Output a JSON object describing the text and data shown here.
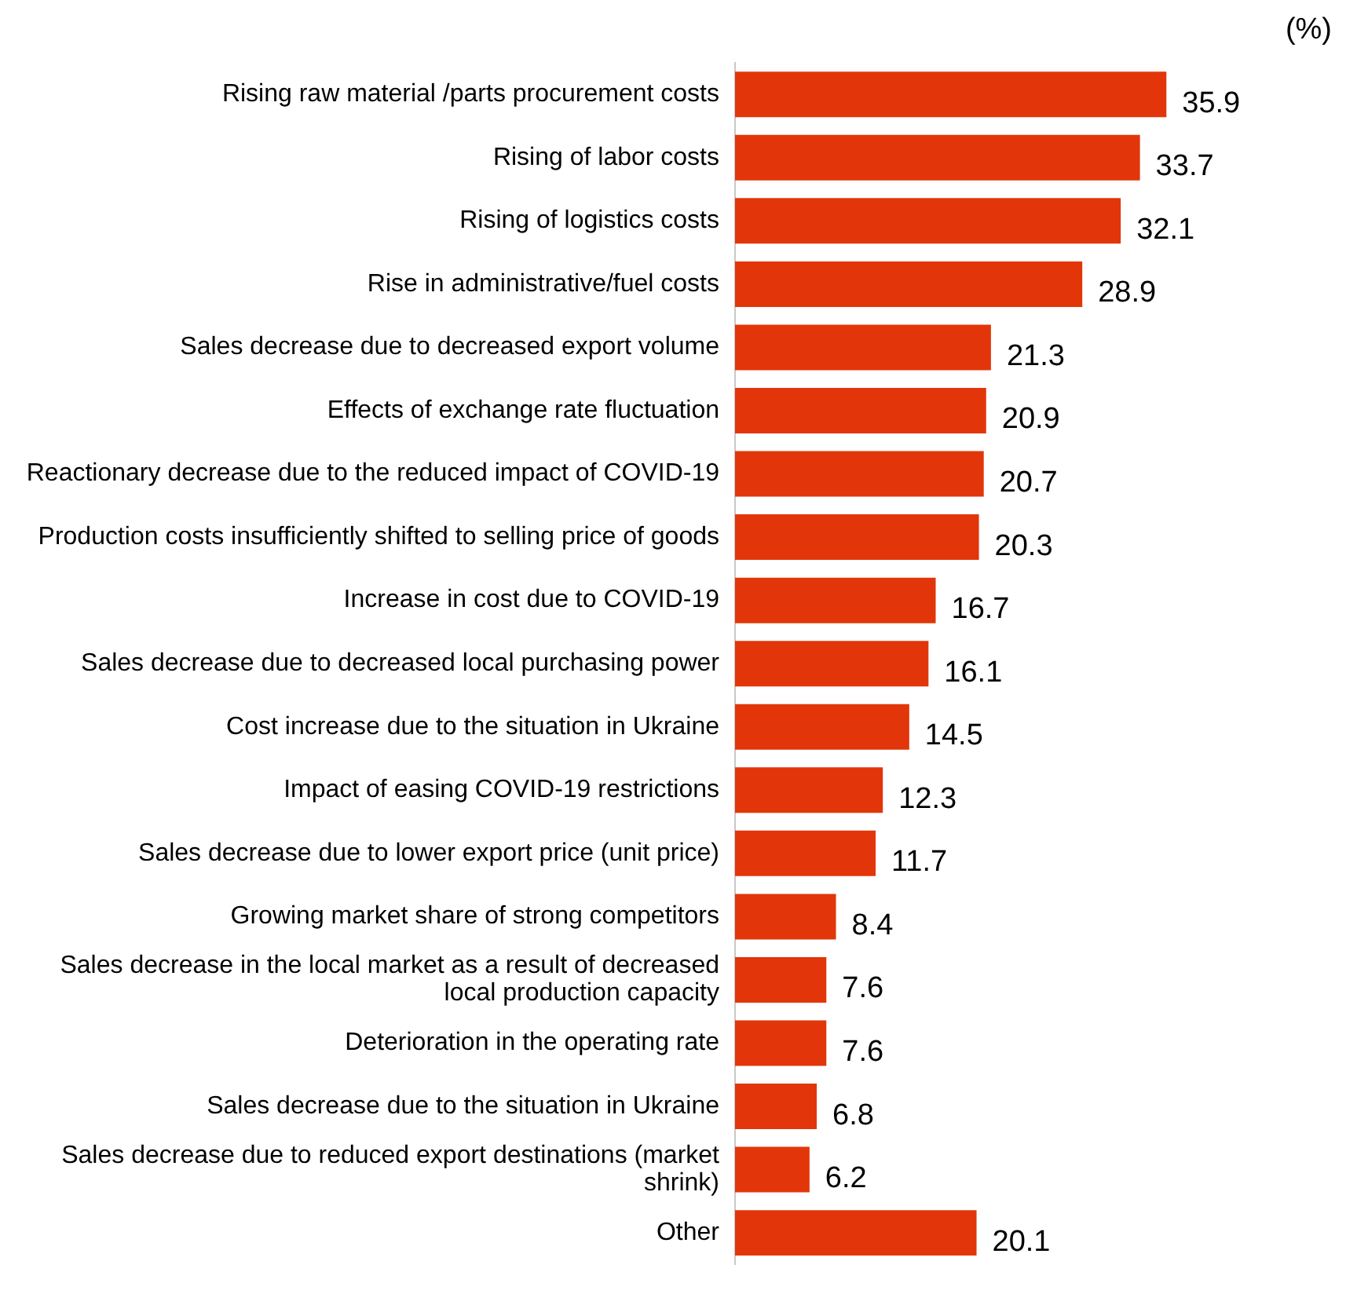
{
  "chart_data": {
    "type": "bar",
    "orientation": "horizontal",
    "data_labels": true,
    "grid": false,
    "legend": false,
    "tick_labels": "y",
    "annotations": [
      "(%)"
    ],
    "categories": [
      "Rising raw material /parts procurement costs",
      "Rising of labor costs",
      "Rising of logistics costs",
      "Rise in administrative/fuel costs",
      "Sales decrease due to decreased export volume",
      "Effects of exchange rate fluctuation",
      "Reactionary decrease due to the reduced impact of COVID-19",
      "Production costs insufficiently shifted to selling price of goods",
      "Increase in cost due to COVID-19",
      "Sales decrease due to decreased local purchasing power",
      "Cost increase due to the situation in Ukraine",
      "Impact of easing COVID-19 restrictions",
      "Sales decrease due to lower export price (unit price)",
      "Growing market share of strong competitors",
      "Sales decrease in the local market as a result of decreased local production capacity",
      "Deterioration in the operating rate",
      "Sales decrease due to the situation in Ukraine",
      "Sales decrease due to reduced export destinations (market shrink)",
      "Other"
    ],
    "values": [
      35.9,
      33.7,
      32.1,
      28.9,
      21.3,
      20.9,
      20.7,
      20.3,
      16.7,
      16.1,
      14.5,
      12.3,
      11.7,
      8.4,
      7.6,
      7.6,
      6.8,
      6.2,
      20.1
    ],
    "color": "#e2360a"
  }
}
